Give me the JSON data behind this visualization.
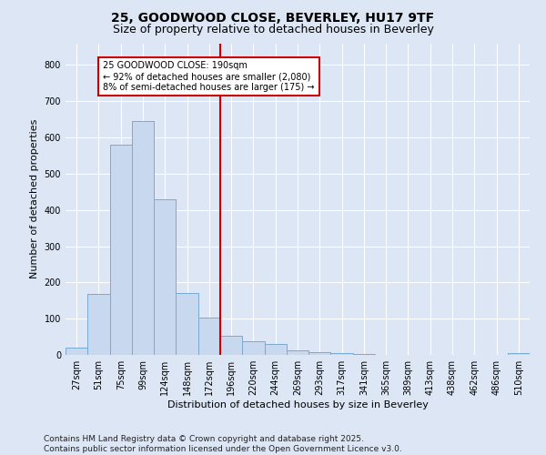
{
  "title_line1": "25, GOODWOOD CLOSE, BEVERLEY, HU17 9TF",
  "title_line2": "Size of property relative to detached houses in Beverley",
  "xlabel": "Distribution of detached houses by size in Beverley",
  "ylabel": "Number of detached properties",
  "bar_color": "#c8d8ee",
  "bar_edge_color": "#7aaad0",
  "background_color": "#dce6f5",
  "fig_background_color": "#dce6f5",
  "grid_color": "#ffffff",
  "categories": [
    "27sqm",
    "51sqm",
    "75sqm",
    "99sqm",
    "124sqm",
    "148sqm",
    "172sqm",
    "196sqm",
    "220sqm",
    "244sqm",
    "269sqm",
    "293sqm",
    "317sqm",
    "341sqm",
    "365sqm",
    "389sqm",
    "413sqm",
    "438sqm",
    "462sqm",
    "486sqm",
    "510sqm"
  ],
  "values": [
    20,
    167,
    580,
    645,
    430,
    170,
    103,
    53,
    37,
    30,
    13,
    8,
    5,
    3,
    0,
    0,
    0,
    0,
    0,
    0,
    5
  ],
  "vline_pos": 6.5,
  "vline_color": "#cc0000",
  "annotation_text": "25 GOODWOOD CLOSE: 190sqm\n← 92% of detached houses are smaller (2,080)\n8% of semi-detached houses are larger (175) →",
  "annotation_box_facecolor": "#ffffff",
  "annotation_box_edgecolor": "#cc0000",
  "footer_text": "Contains HM Land Registry data © Crown copyright and database right 2025.\nContains public sector information licensed under the Open Government Licence v3.0.",
  "ylim_max": 860,
  "title_fontsize": 10,
  "subtitle_fontsize": 9,
  "axis_label_fontsize": 8,
  "tick_fontsize": 7,
  "footer_fontsize": 6.5,
  "annot_fontsize": 7
}
